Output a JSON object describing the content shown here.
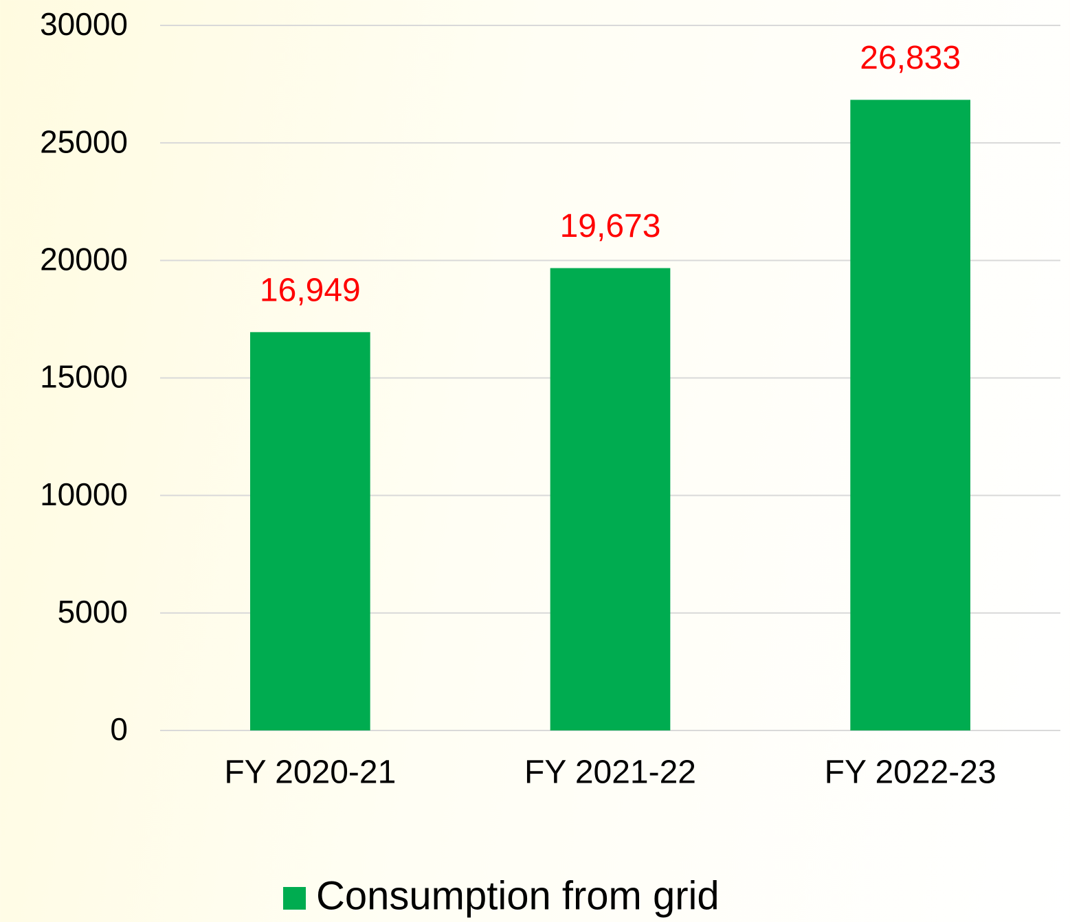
{
  "chart_data": {
    "type": "bar",
    "categories": [
      "FY 2020-21",
      "FY 2021-22",
      "FY 2022-23"
    ],
    "series": [
      {
        "name": "Consumption from grid",
        "color": "#00ac50",
        "values": [
          16949,
          19673,
          26833
        ],
        "value_labels": [
          "16,949",
          "19,673",
          "26,833"
        ]
      }
    ],
    "ylim": [
      0,
      30000
    ],
    "yticks": [
      0,
      5000,
      10000,
      15000,
      20000,
      25000,
      30000
    ],
    "grid": true,
    "legend": "bottom",
    "value_label_color": "#ff0000"
  }
}
